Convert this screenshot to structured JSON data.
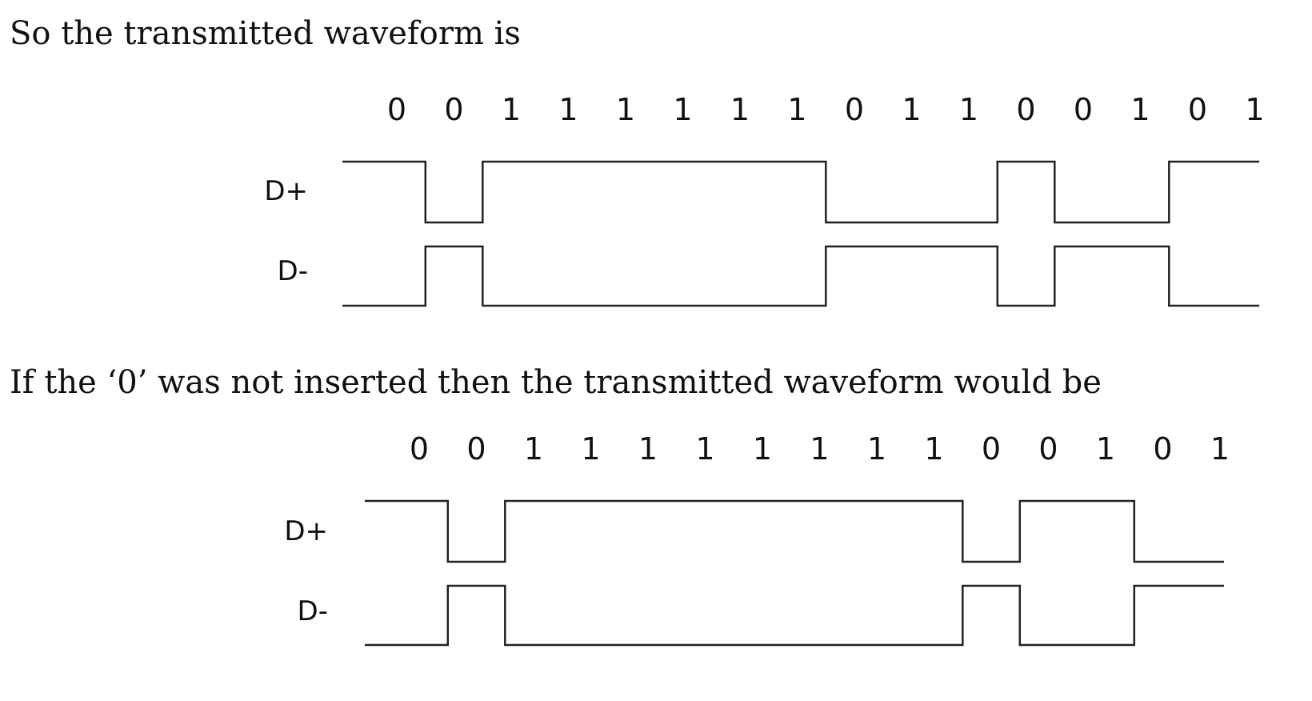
{
  "heading_1": "So the transmitted waveform is",
  "heading_2": "If the ‘0’ was not inserted then the transmitted waveform would be",
  "colors": {
    "ink": "#111111",
    "highlight": "#d9261c",
    "wave": "#222222"
  },
  "diagrams": [
    {
      "bits": [
        "0",
        "0",
        "1",
        "1",
        "1",
        "1",
        "1",
        "1",
        "0",
        "1",
        "1",
        "0",
        "0",
        "1",
        "0",
        "1"
      ],
      "highlight_index": 8,
      "dplus_label": "D+",
      "dminus_label": "D-",
      "dplus_levels": [
        1,
        0,
        1,
        1,
        1,
        1,
        1,
        1,
        0,
        0,
        0,
        1,
        0,
        0,
        1,
        1
      ],
      "initial_dplus": 1
    },
    {
      "bits": [
        "0",
        "0",
        "1",
        "1",
        "1",
        "1",
        "1",
        "1",
        "1",
        "1",
        "0",
        "0",
        "1",
        "0",
        "1"
      ],
      "highlight_index": null,
      "dplus_label": "D+",
      "dminus_label": "D-",
      "dplus_levels": [
        1,
        0,
        1,
        1,
        1,
        1,
        1,
        1,
        1,
        1,
        0,
        1,
        1,
        0,
        0
      ],
      "initial_dplus": 1
    }
  ]
}
